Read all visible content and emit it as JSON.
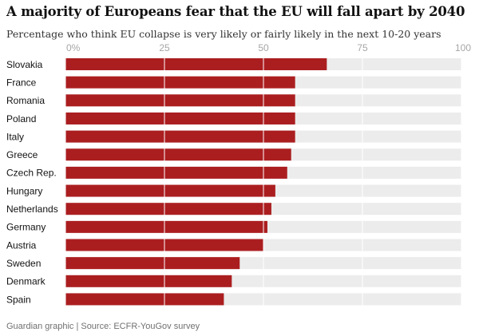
{
  "title": "A majority of Europeans fear that the EU will fall apart by 2040",
  "subtitle": "Percentage who think EU collapse is very likely or fairly likely in the next 10-20 years",
  "source": "Guardian graphic | Source: ECFR-YouGov survey",
  "chart_data": {
    "type": "bar",
    "orientation": "horizontal",
    "categories": [
      "Slovakia",
      "France",
      "Romania",
      "Poland",
      "Italy",
      "Greece",
      "Czech Rep.",
      "Hungary",
      "Netherlands",
      "Germany",
      "Austria",
      "Sweden",
      "Denmark",
      "Spain"
    ],
    "values": [
      66,
      58,
      58,
      58,
      58,
      57,
      56,
      53,
      52,
      51,
      50,
      44,
      42,
      40
    ],
    "xlim": [
      0,
      100
    ],
    "ticks": [
      0,
      25,
      50,
      75,
      100
    ],
    "tick_labels": [
      "0%",
      "25",
      "50",
      "75",
      "100"
    ],
    "grid": true,
    "colors": {
      "bar": "#ab1e20",
      "track": "#ececec",
      "grid": "#ffffff"
    }
  }
}
